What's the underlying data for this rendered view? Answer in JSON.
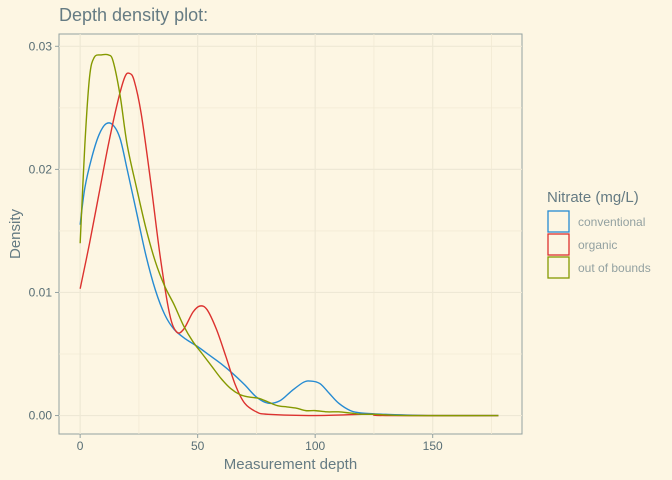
{
  "chart_data": {
    "type": "line",
    "title": "Depth density plot:",
    "xlabel": "Measurement depth",
    "ylabel": "Density",
    "xlim": [
      -9,
      188
    ],
    "ylim": [
      -0.0015,
      0.031
    ],
    "x_ticks": [
      0,
      50,
      100,
      150
    ],
    "x_tick_labels": [
      "0",
      "50",
      "100",
      "150"
    ],
    "y_ticks": [
      0,
      0.01,
      0.02,
      0.03
    ],
    "y_tick_labels": [
      "0.00",
      "0.01",
      "0.02",
      "0.03"
    ],
    "grid": true,
    "legend": {
      "title": "Nitrate (mg/L)",
      "position": "right"
    },
    "series": [
      {
        "name": "conventional",
        "color": "#268bd2",
        "points": [
          [
            0,
            0.0155
          ],
          [
            2,
            0.0185
          ],
          [
            5,
            0.021
          ],
          [
            8,
            0.0228
          ],
          [
            11,
            0.0237
          ],
          [
            14,
            0.0236
          ],
          [
            17,
            0.0225
          ],
          [
            20,
            0.02
          ],
          [
            24,
            0.0165
          ],
          [
            28,
            0.013
          ],
          [
            32,
            0.0102
          ],
          [
            36,
            0.0082
          ],
          [
            40,
            0.007
          ],
          [
            45,
            0.0062
          ],
          [
            50,
            0.0056
          ],
          [
            55,
            0.0049
          ],
          [
            60,
            0.0042
          ],
          [
            65,
            0.0034
          ],
          [
            70,
            0.0025
          ],
          [
            75,
            0.0015
          ],
          [
            80,
            0.001
          ],
          [
            85,
            0.0012
          ],
          [
            90,
            0.002
          ],
          [
            95,
            0.0027
          ],
          [
            98,
            0.0028
          ],
          [
            102,
            0.0026
          ],
          [
            106,
            0.0018
          ],
          [
            110,
            0.001
          ],
          [
            115,
            0.0004
          ],
          [
            120,
            0.0002
          ],
          [
            130,
            0.0001
          ],
          [
            150,
            0.0
          ],
          [
            178,
            0.0
          ]
        ]
      },
      {
        "name": "organic",
        "color": "#dc322f",
        "points": [
          [
            0,
            0.0103
          ],
          [
            4,
            0.014
          ],
          [
            8,
            0.018
          ],
          [
            12,
            0.022
          ],
          [
            16,
            0.0255
          ],
          [
            19,
            0.0275
          ],
          [
            21,
            0.0278
          ],
          [
            23,
            0.0272
          ],
          [
            26,
            0.0245
          ],
          [
            30,
            0.019
          ],
          [
            34,
            0.013
          ],
          [
            38,
            0.0083
          ],
          [
            41,
            0.0068
          ],
          [
            44,
            0.007
          ],
          [
            48,
            0.0084
          ],
          [
            51,
            0.0089
          ],
          [
            54,
            0.0086
          ],
          [
            58,
            0.007
          ],
          [
            62,
            0.0048
          ],
          [
            66,
            0.0025
          ],
          [
            70,
            0.001
          ],
          [
            75,
            0.0003
          ],
          [
            80,
            0.0001
          ],
          [
            100,
            0.0
          ],
          [
            120,
            0.0001
          ],
          [
            125,
            0.0001
          ],
          [
            130,
            0.0
          ],
          [
            178,
            0.0
          ]
        ]
      },
      {
        "name": "out of bounds",
        "color": "#859900",
        "points": [
          [
            0,
            0.014
          ],
          [
            2,
            0.022
          ],
          [
            4,
            0.0275
          ],
          [
            6,
            0.0291
          ],
          [
            9,
            0.0293
          ],
          [
            12,
            0.0293
          ],
          [
            14,
            0.0288
          ],
          [
            17,
            0.026
          ],
          [
            20,
            0.022
          ],
          [
            24,
            0.0185
          ],
          [
            28,
            0.0152
          ],
          [
            32,
            0.0125
          ],
          [
            36,
            0.0105
          ],
          [
            40,
            0.009
          ],
          [
            44,
            0.0073
          ],
          [
            48,
            0.006
          ],
          [
            52,
            0.005
          ],
          [
            56,
            0.004
          ],
          [
            60,
            0.003
          ],
          [
            64,
            0.0022
          ],
          [
            68,
            0.0017
          ],
          [
            72,
            0.0015
          ],
          [
            76,
            0.0014
          ],
          [
            80,
            0.0011
          ],
          [
            84,
            0.0008
          ],
          [
            88,
            0.0007
          ],
          [
            92,
            0.0006
          ],
          [
            96,
            0.0004
          ],
          [
            100,
            0.0004
          ],
          [
            105,
            0.0003
          ],
          [
            110,
            0.0003
          ],
          [
            115,
            0.0002
          ],
          [
            120,
            0.0001
          ],
          [
            125,
            0.0001
          ],
          [
            140,
            0.0
          ],
          [
            178,
            0.0
          ]
        ]
      }
    ]
  }
}
